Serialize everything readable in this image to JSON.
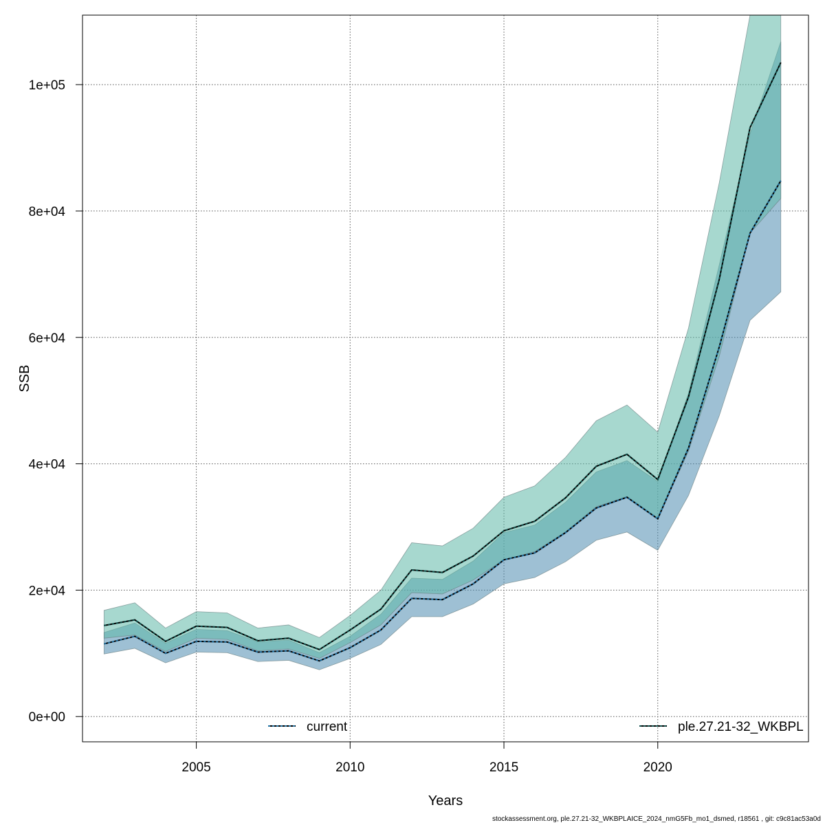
{
  "chart_data": {
    "type": "area",
    "title": "",
    "xlabel": "Years",
    "ylabel": "SSB",
    "xlim": [
      2001.3,
      2024.9
    ],
    "ylim": [
      -4000,
      111000
    ],
    "x_ticks": [
      2005,
      2010,
      2015,
      2020
    ],
    "x_tick_labels": [
      "2005",
      "2010",
      "2015",
      "2020"
    ],
    "y_ticks": [
      0,
      20000,
      40000,
      60000,
      80000,
      100000
    ],
    "y_tick_labels": [
      "0e+00",
      "2e+04",
      "4e+04",
      "6e+04",
      "8e+04",
      "1e+05"
    ],
    "grid": true,
    "x": [
      2002,
      2003,
      2004,
      2005,
      2006,
      2007,
      2008,
      2009,
      2010,
      2011,
      2012,
      2013,
      2014,
      2015,
      2016,
      2017,
      2018,
      2019,
      2020,
      2021,
      2022,
      2023,
      2024
    ],
    "series": [
      {
        "name": "current",
        "color": "#1f6fa0",
        "band_color": "#4f8db0",
        "values": [
          11500,
          12700,
          10000,
          11900,
          11800,
          10200,
          10400,
          8800,
          10900,
          13700,
          18700,
          18500,
          21000,
          24800,
          25900,
          29100,
          33000,
          34700,
          31300,
          42500,
          58500,
          76500,
          84800
        ],
        "lower": [
          9900,
          10800,
          8500,
          10200,
          10100,
          8700,
          8900,
          7400,
          9200,
          11400,
          15800,
          15800,
          17800,
          21000,
          22000,
          24500,
          27900,
          29200,
          26300,
          35000,
          47600,
          62700,
          67200
        ],
        "upper": [
          13300,
          14800,
          11600,
          13800,
          13600,
          11800,
          12100,
          10100,
          12700,
          16200,
          21900,
          21700,
          24600,
          29100,
          30300,
          33900,
          38700,
          40500,
          37200,
          51200,
          71500,
          92200,
          106800
        ]
      },
      {
        "name": "ple.27.21-32_WKBPL",
        "color": "#0d4f4a",
        "band_color": "#5fb8a8",
        "values": [
          14400,
          15300,
          11900,
          14300,
          14100,
          12000,
          12400,
          10600,
          13700,
          17000,
          23200,
          22800,
          25400,
          29400,
          30900,
          34600,
          39600,
          41500,
          37500,
          50600,
          69200,
          93200,
          103500
        ],
        "lower": [
          12400,
          12900,
          10300,
          12400,
          12200,
          10400,
          10700,
          9200,
          11700,
          14500,
          19600,
          19400,
          21600,
          24800,
          26100,
          29200,
          33200,
          34800,
          31300,
          42000,
          57000,
          76500,
          82000
        ],
        "upper": [
          16800,
          18000,
          14000,
          16600,
          16400,
          14000,
          14500,
          12500,
          16000,
          20000,
          27500,
          27000,
          29800,
          34700,
          36500,
          41000,
          46800,
          49300,
          45000,
          61500,
          84500,
          111000,
          111000
        ]
      }
    ],
    "legend_position": "bottom"
  },
  "footer_text": "stockassessment.org, ple.27.21-32_WKBPLAICE_2024_nmG5Fb_mo1_dsmed, r18561 , git: c9c81ac53a0d"
}
